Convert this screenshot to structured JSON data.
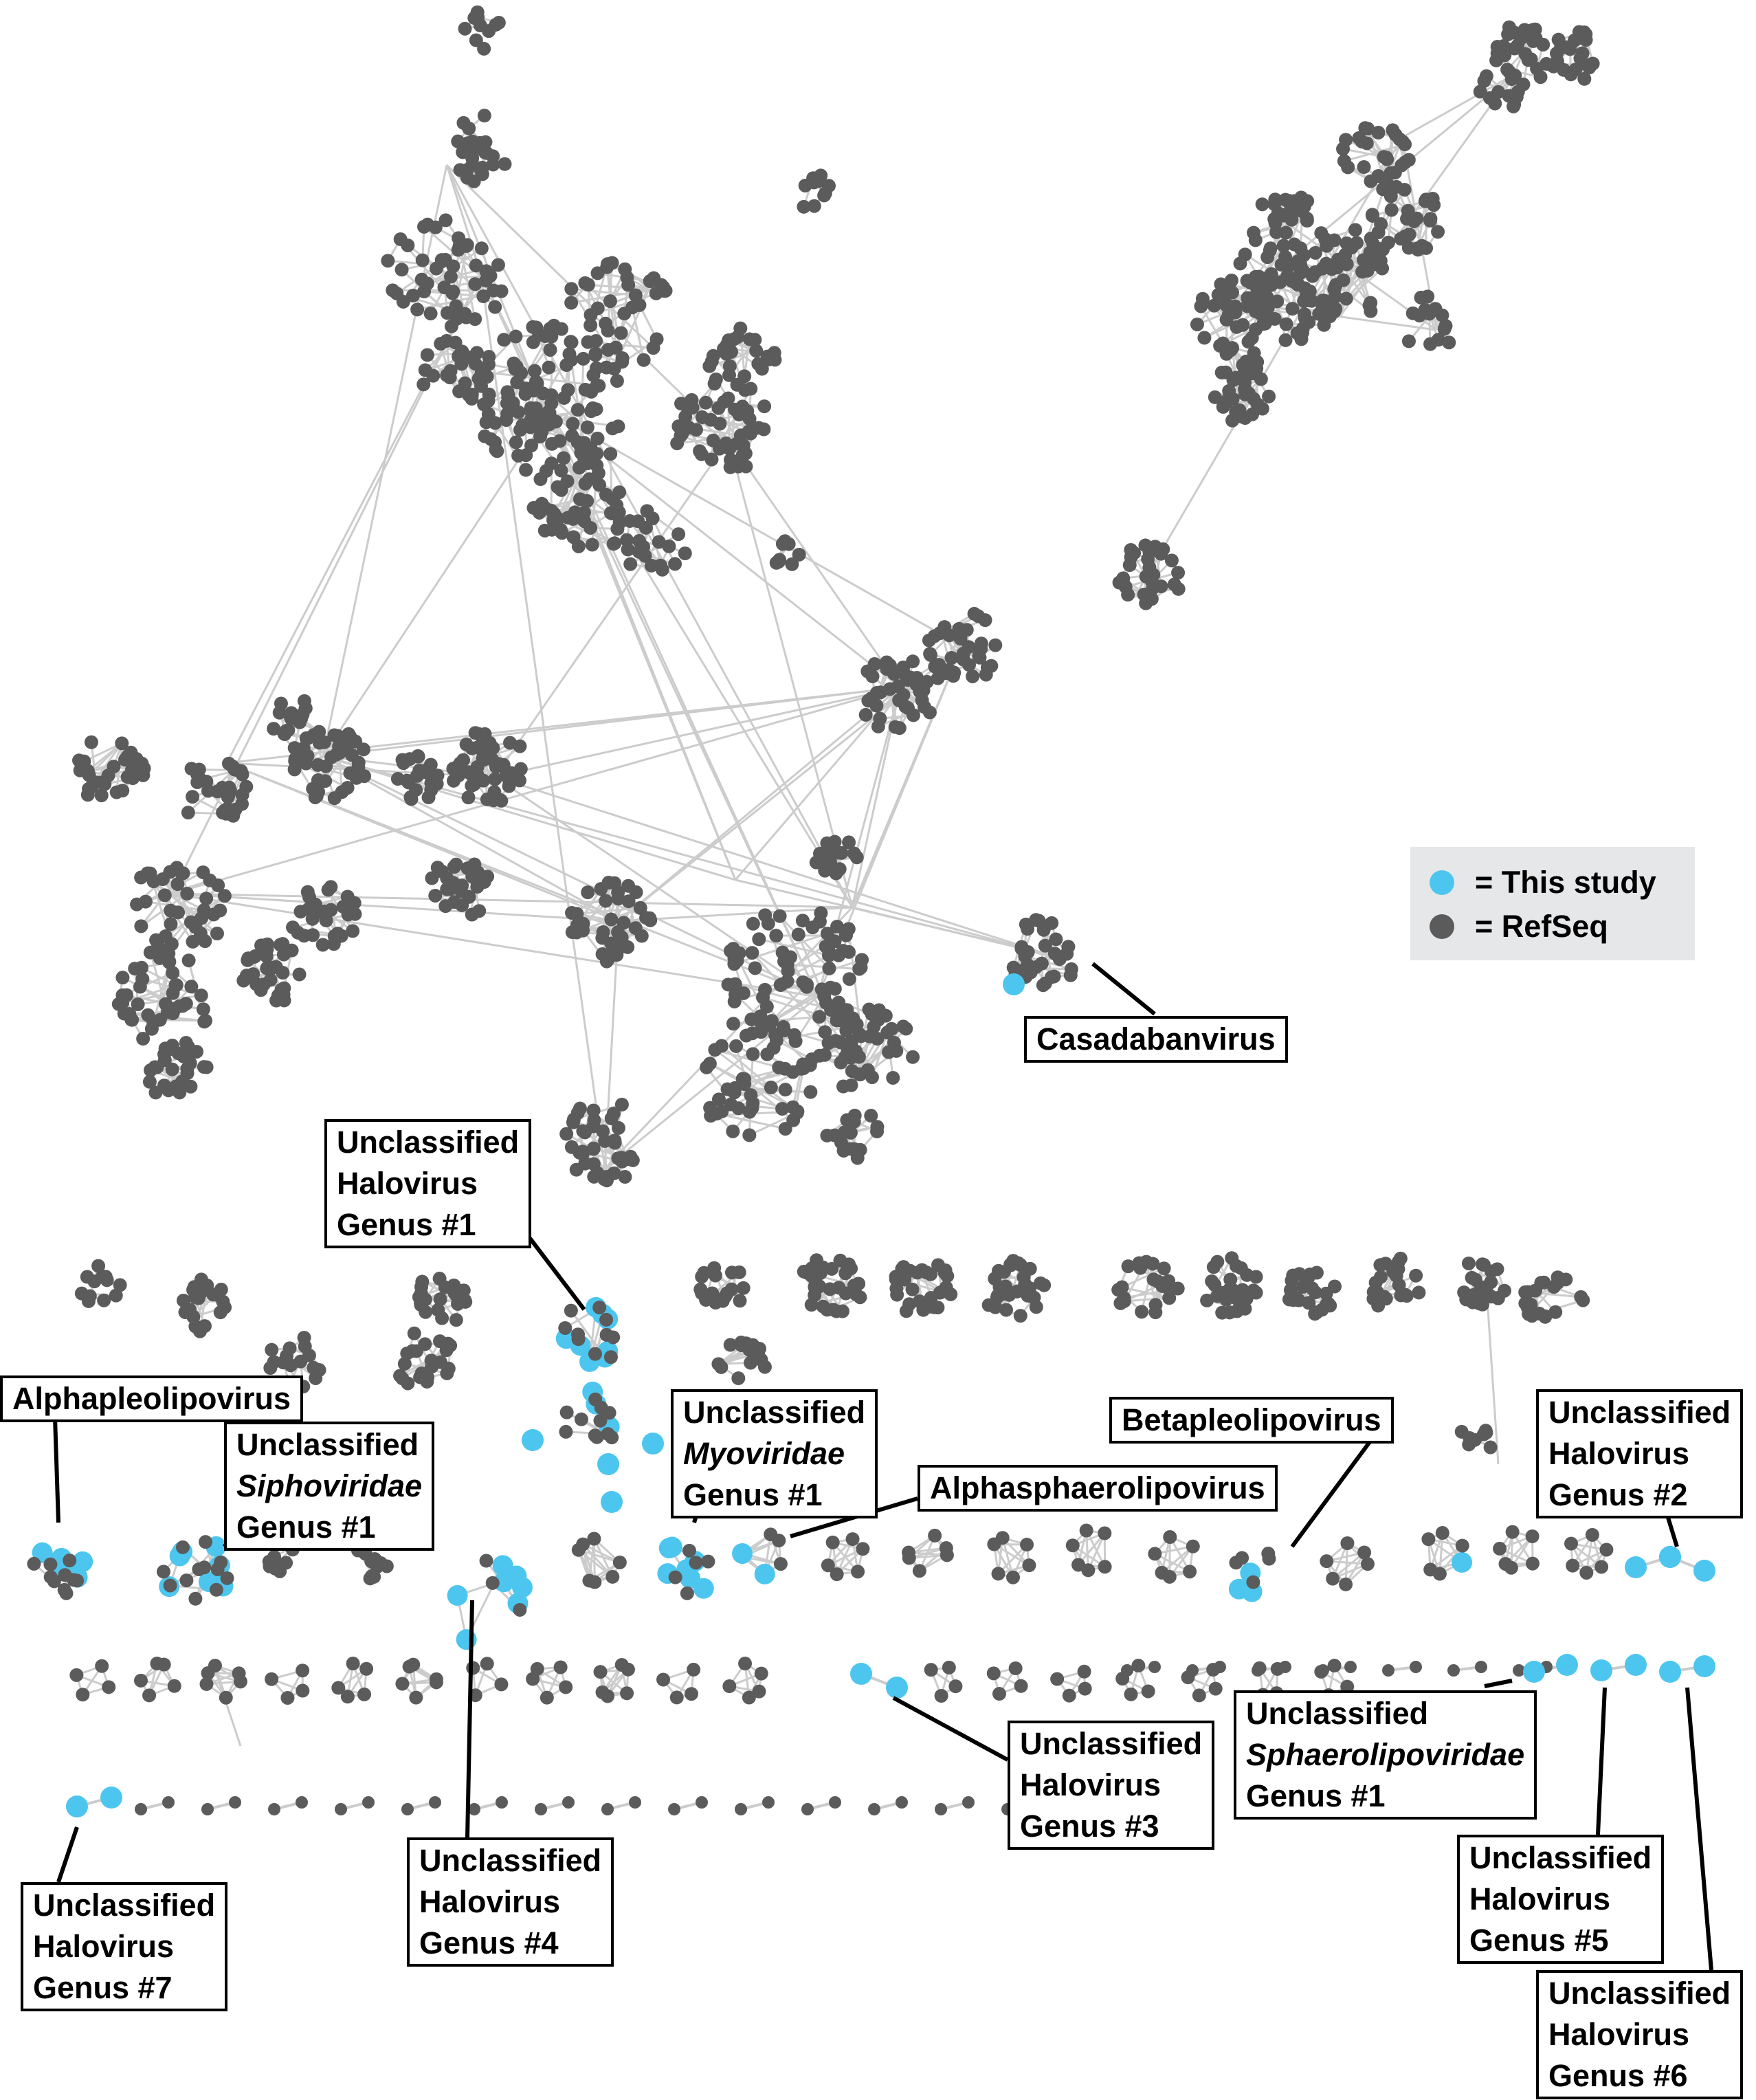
{
  "colors": {
    "this_study": "#4cc6ee",
    "refseq": "#5b5b5b",
    "edge": "#cccccc"
  },
  "legend": {
    "this_study": "= This study",
    "refseq": "= RefSeq"
  },
  "labels": {
    "casadabanvirus": "Casadabanvirus",
    "uhg1": [
      "Unclassified",
      "Halovirus",
      "Genus #1"
    ],
    "alphapleolipovirus": "Alphapleolipovirus",
    "siphoviridae": [
      "Unclassified",
      "Siphoviridae",
      "Genus #1"
    ],
    "myoviridae": [
      "Unclassified",
      "Myoviridae",
      "Genus #1"
    ],
    "alphasphaerolipovirus": "Alphasphaerolipovirus",
    "betapleolipovirus": "Betapleolipovirus",
    "uhg2": [
      "Unclassified",
      "Halovirus",
      "Genus #2"
    ],
    "uhg3": [
      "Unclassified",
      "Halovirus",
      "Genus #3"
    ],
    "sphaerolipoviridae": [
      "Unclassified",
      "Sphaerolipoviridae",
      "Genus #1"
    ],
    "uhg4": [
      "Unclassified",
      "Halovirus",
      "Genus #4"
    ],
    "uhg5": [
      "Unclassified",
      "Halovirus",
      "Genus #5"
    ],
    "uhg6": [
      "Unclassified",
      "Halovirus",
      "Genus #6"
    ],
    "uhg7": [
      "Unclassified",
      "Halovirus",
      "Genus #7"
    ]
  }
}
